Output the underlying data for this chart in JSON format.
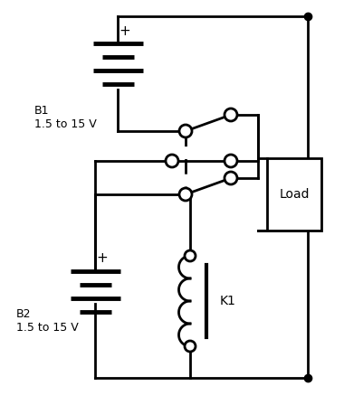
{
  "bg_color": "#ffffff",
  "line_color": "#000000",
  "fig_width": 3.8,
  "fig_height": 4.48,
  "dpi": 100,
  "battery1_label": "B1\n1.5 to 15 V",
  "battery2_label": "B2\n1.5 to 15 V",
  "relay_label": "K1",
  "load_label": "Load",
  "plus1_label": "+",
  "plus2_label": "+"
}
